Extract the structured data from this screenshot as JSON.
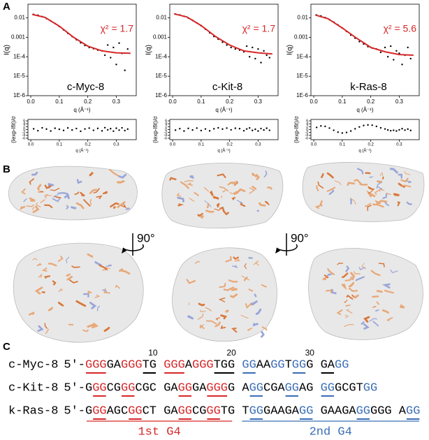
{
  "panel_labels": [
    "A",
    "B",
    "C"
  ],
  "chart_data": [
    {
      "type": "saxs",
      "log_y": true,
      "label": "c-Myc-8",
      "annotation": "χ² = 1.7",
      "x_label": "q (Å⁻¹)",
      "y_label": "I(q)",
      "xlim": [
        -0.01,
        0.37
      ],
      "ylim": [
        1e-06,
        0.05
      ],
      "xticks": [
        {
          "value": 0,
          "label": "0.0"
        },
        0.1,
        0.2,
        0.3
      ],
      "yticks": [
        0.01,
        0.001,
        {
          "value": 0.0001,
          "label": "1E-4"
        },
        {
          "value": 1e-05,
          "label": "1E-5"
        },
        {
          "value": 1e-06,
          "label": "1E-6"
        }
      ],
      "series": [
        {
          "kind": "points",
          "color": "#000000",
          "x": [
            0.01,
            0.025,
            0.04,
            0.055,
            0.07,
            0.085,
            0.1,
            0.115,
            0.13,
            0.145,
            0.16,
            0.175,
            0.19,
            0.205,
            0.22,
            0.235,
            0.25,
            0.26,
            0.27,
            0.28,
            0.29,
            0.3,
            0.31,
            0.32,
            0.33,
            0.34
          ],
          "values": [
            0.0148,
            0.0135,
            0.0115,
            0.0092,
            0.007,
            0.0051,
            0.0036,
            0.0024,
            0.0016,
            0.0011,
            0.00075,
            0.00052,
            0.00038,
            0.0003,
            0.00026,
            0.00022,
            0.0002,
            0.00012,
            0.0004,
            9e-05,
            0.0003,
            4e-05,
            0.0005,
            0.00015,
            2e-05,
            0.00025
          ]
        },
        {
          "kind": "line",
          "color": "#d62728",
          "x": [
            0.005,
            0.05,
            0.1,
            0.15,
            0.2,
            0.25,
            0.3,
            0.35
          ],
          "values": [
            0.015,
            0.0105,
            0.0037,
            0.001,
            0.00035,
            0.0002,
            0.00016,
            0.00015
          ]
        }
      ]
    },
    {
      "type": "saxs",
      "log_y": true,
      "label": "c-Kit-8",
      "annotation": "χ² = 1.7",
      "x_label": "q (Å⁻¹)",
      "y_label": "I(q)",
      "xlim": [
        -0.01,
        0.37
      ],
      "ylim": [
        1e-06,
        0.05
      ],
      "xticks": [
        {
          "value": 0,
          "label": "0.0"
        },
        0.1,
        0.2,
        0.3
      ],
      "yticks": [
        0.01,
        0.001,
        {
          "value": 0.0001,
          "label": "1E-4"
        },
        {
          "value": 1e-05,
          "label": "1E-5"
        },
        {
          "value": 1e-06,
          "label": "1E-6"
        }
      ],
      "series": [
        {
          "kind": "points",
          "color": "#000000",
          "x": [
            0.01,
            0.025,
            0.04,
            0.055,
            0.07,
            0.085,
            0.1,
            0.115,
            0.13,
            0.145,
            0.16,
            0.175,
            0.19,
            0.205,
            0.22,
            0.235,
            0.25,
            0.26,
            0.27,
            0.28,
            0.29,
            0.3,
            0.31,
            0.32,
            0.33,
            0.34
          ],
          "values": [
            0.0155,
            0.014,
            0.012,
            0.0097,
            0.0074,
            0.0054,
            0.0039,
            0.0026,
            0.0017,
            0.0011,
            0.0008,
            0.00056,
            0.0004,
            0.0003,
            0.00025,
            0.00022,
            0.00018,
            0.00035,
            0.0001,
            0.0003,
            8e-05,
            0.00025,
            5e-05,
            0.0002,
            0.00012,
            9e-05
          ]
        },
        {
          "kind": "line",
          "color": "#d62728",
          "x": [
            0.005,
            0.05,
            0.1,
            0.15,
            0.2,
            0.25,
            0.3,
            0.35
          ],
          "values": [
            0.016,
            0.011,
            0.004,
            0.0011,
            0.0004,
            0.0002,
            0.00016,
            0.00014
          ]
        }
      ]
    },
    {
      "type": "saxs",
      "log_y": true,
      "label": "k-Ras-8",
      "annotation": "χ² = 5.6",
      "x_label": "q (Å⁻¹)",
      "y_label": "I(q)",
      "xlim": [
        -0.01,
        0.37
      ],
      "ylim": [
        1e-06,
        0.05
      ],
      "xticks": [
        {
          "value": 0,
          "label": "0.0"
        },
        0.1,
        0.2,
        0.3
      ],
      "yticks": [
        0.01,
        0.001,
        {
          "value": 0.0001,
          "label": "1E-4"
        },
        {
          "value": 1e-05,
          "label": "1E-5"
        },
        {
          "value": 1e-06,
          "label": "1E-6"
        }
      ],
      "series": [
        {
          "kind": "points",
          "color": "#000000",
          "x": [
            0.01,
            0.025,
            0.04,
            0.055,
            0.07,
            0.085,
            0.1,
            0.115,
            0.13,
            0.145,
            0.16,
            0.175,
            0.19,
            0.205,
            0.22,
            0.235,
            0.25,
            0.26,
            0.27,
            0.28,
            0.29,
            0.3,
            0.31,
            0.32,
            0.33,
            0.34
          ],
          "values": [
            0.0138,
            0.0125,
            0.0102,
            0.008,
            0.006,
            0.0043,
            0.003,
            0.002,
            0.0013,
            0.0009,
            0.0006,
            0.00045,
            0.00033,
            0.00028,
            0.00025,
            0.00017,
            0.0003,
            0.0001,
            0.00035,
            7e-05,
            0.0002,
            0.00015,
            4e-05,
            0.00012,
            0.0003,
            8e-05
          ]
        },
        {
          "kind": "line",
          "color": "#d62728",
          "x": [
            0.005,
            0.05,
            0.1,
            0.15,
            0.2,
            0.25,
            0.3,
            0.35
          ],
          "values": [
            0.014,
            0.009,
            0.003,
            0.0009,
            0.0003,
            0.00018,
            0.00013,
            0.00012
          ]
        }
      ]
    },
    {
      "type": "residual",
      "x_label": "q (Å⁻¹)",
      "y_label": "(Iexp-Ifit)/σ",
      "xlim": [
        -0.01,
        0.37
      ],
      "ylim": [
        -7,
        7
      ],
      "xticks": [
        {
          "value": 0,
          "label": "0.0"
        },
        0.1,
        0.2,
        0.3
      ],
      "yticks": [
        6,
        4,
        2,
        0,
        -2,
        -4,
        -6
      ],
      "series": [
        {
          "kind": "points",
          "color": "#000000",
          "x": [
            0.01,
            0.025,
            0.04,
            0.055,
            0.07,
            0.085,
            0.1,
            0.115,
            0.13,
            0.145,
            0.16,
            0.175,
            0.19,
            0.205,
            0.22,
            0.235,
            0.25,
            0.26,
            0.27,
            0.28,
            0.29,
            0.3,
            0.31,
            0.32,
            0.33,
            0.34
          ],
          "values": [
            0.5,
            -0.8,
            1.2,
            0.3,
            -1,
            0.9,
            0.2,
            -0.6,
            1.1,
            -0.3,
            0.7,
            -1.2,
            0.4,
            1,
            -0.5,
            0.8,
            -0.9,
            1.3,
            -0.2,
            0.6,
            -1.1,
            0.9,
            -0.4,
            1.2,
            -0.7,
            0.3
          ]
        }
      ]
    },
    {
      "type": "residual",
      "x_label": "q (Å⁻¹)",
      "y_label": "(Iexp-Ifit)/σ",
      "xlim": [
        -0.01,
        0.37
      ],
      "ylim": [
        -7,
        7
      ],
      "xticks": [
        {
          "value": 0,
          "label": "0.0"
        },
        0.1,
        0.2,
        0.3
      ],
      "yticks": [
        6,
        4,
        2,
        0,
        -2,
        -4,
        -6
      ],
      "series": [
        {
          "kind": "points",
          "color": "#000000",
          "x": [
            0.01,
            0.025,
            0.04,
            0.055,
            0.07,
            0.085,
            0.1,
            0.115,
            0.13,
            0.145,
            0.16,
            0.175,
            0.19,
            0.205,
            0.22,
            0.235,
            0.25,
            0.26,
            0.27,
            0.28,
            0.29,
            0.3,
            0.31,
            0.32,
            0.33,
            0.34
          ],
          "values": [
            -0.4,
            0.6,
            -1,
            0.8,
            -0.3,
            1,
            -0.7,
            0.4,
            -0.9,
            0.5,
            1.2,
            0.3,
            1,
            -0.2,
            0.9,
            0.6,
            -0.8,
            0.4,
            1.1,
            -0.6,
            0.2,
            -1,
            0.7,
            -0.3,
            0.9,
            -0.5
          ]
        }
      ]
    },
    {
      "type": "residual",
      "x_label": "q (Å⁻¹)",
      "y_label": "(Iexp-Ifit)/σ",
      "xlim": [
        -0.01,
        0.37
      ],
      "ylim": [
        -7,
        7
      ],
      "xticks": [
        {
          "value": 0,
          "label": "0.0"
        },
        0.1,
        0.2,
        0.3
      ],
      "yticks": [
        6,
        4,
        2,
        0,
        -2,
        -4,
        -6
      ],
      "series": [
        {
          "kind": "points",
          "color": "#000000",
          "x": [
            0.01,
            0.025,
            0.04,
            0.055,
            0.07,
            0.085,
            0.1,
            0.115,
            0.13,
            0.145,
            0.16,
            0.175,
            0.19,
            0.205,
            0.22,
            0.235,
            0.25,
            0.26,
            0.27,
            0.28,
            0.29,
            0.3,
            0.31,
            0.32,
            0.33,
            0.34
          ],
          "values": [
            1.5,
            2.5,
            2.2,
            1,
            -0.5,
            -1.8,
            -2.4,
            -2,
            -1,
            0.5,
            1.8,
            2.8,
            3.2,
            3,
            2.2,
            1.2,
            0.4,
            -0.3,
            -0.8,
            -0.5,
            -1,
            -0.2,
            0.6,
            -0.4,
            0.3,
            -0.6
          ]
        }
      ]
    }
  ],
  "panel_b": {
    "rotation_labels": [
      "90°",
      "90°"
    ]
  },
  "panel_c": {
    "position_labels": [
      10,
      20,
      30
    ],
    "prefix": "5'-",
    "rows": [
      {
        "name": "c-Myc-8",
        "segments": [
          {
            "text": "GGG",
            "color": "#d62728",
            "underline": true
          },
          {
            "text": "GA",
            "color": "#000000",
            "underline": false
          },
          {
            "text": "GGG",
            "color": "#d62728",
            "underline": false
          },
          {
            "text": "TG ",
            "color": "#000000",
            "underline": true
          },
          {
            "text": "GGG",
            "color": "#d62728",
            "underline": true
          },
          {
            "text": "A",
            "color": "#000000",
            "underline": false
          },
          {
            "text": "GGG",
            "color": "#d62728",
            "underline": false
          },
          {
            "text": "TGG ",
            "color": "#000000",
            "underline": true
          },
          {
            "text": "GG",
            "color": "#3a6db5",
            "underline": true
          },
          {
            "text": "AA",
            "color": "#000000",
            "underline": false
          },
          {
            "text": "GG",
            "color": "#3a6db5",
            "underline": false
          },
          {
            "text": "T",
            "color": "#000000",
            "underline": false
          },
          {
            "text": "GG",
            "color": "#3a6db5",
            "underline": true
          },
          {
            "text": "G ",
            "color": "#000000",
            "underline": false
          },
          {
            "text": "GA",
            "color": "#000000",
            "underline": true
          },
          {
            "text": "GG",
            "color": "#3a6db5",
            "underline": false
          }
        ]
      },
      {
        "name": "c-Kit-8",
        "segments": [
          {
            "text": "G",
            "color": "#000000",
            "underline": false
          },
          {
            "text": "GG",
            "color": "#d62728",
            "underline": true
          },
          {
            "text": "CG",
            "color": "#000000",
            "underline": false
          },
          {
            "text": "GG",
            "color": "#d62728",
            "underline": true
          },
          {
            "text": "CGC ",
            "color": "#000000",
            "underline": false
          },
          {
            "text": "GA",
            "color": "#000000",
            "underline": false
          },
          {
            "text": "GG",
            "color": "#d62728",
            "underline": true
          },
          {
            "text": "GA",
            "color": "#000000",
            "underline": false
          },
          {
            "text": "GGG",
            "color": "#d62728",
            "underline": true
          },
          {
            "text": "G ",
            "color": "#000000",
            "underline": false
          },
          {
            "text": "A",
            "color": "#000000",
            "underline": false
          },
          {
            "text": "GG",
            "color": "#3a6db5",
            "underline": true
          },
          {
            "text": "CGA",
            "color": "#000000",
            "underline": false
          },
          {
            "text": "GG",
            "color": "#3a6db5",
            "underline": true
          },
          {
            "text": "AG ",
            "color": "#000000",
            "underline": false
          },
          {
            "text": "GG",
            "color": "#3a6db5",
            "underline": true
          },
          {
            "text": "GCGT",
            "color": "#000000",
            "underline": false
          },
          {
            "text": "GG",
            "color": "#3a6db5",
            "underline": false
          }
        ]
      },
      {
        "name": "k-Ras-8",
        "segments": [
          {
            "text": "G",
            "color": "#000000",
            "underline": false
          },
          {
            "text": "GG",
            "color": "#d62728",
            "underline": true
          },
          {
            "text": "AGC",
            "color": "#000000",
            "underline": false
          },
          {
            "text": "GG",
            "color": "#d62728",
            "underline": true
          },
          {
            "text": "CT ",
            "color": "#000000",
            "underline": false
          },
          {
            "text": "GA",
            "color": "#000000",
            "underline": false
          },
          {
            "text": "GG",
            "color": "#d62728",
            "underline": true
          },
          {
            "text": "CG",
            "color": "#000000",
            "underline": false
          },
          {
            "text": "GG",
            "color": "#d62728",
            "underline": true
          },
          {
            "text": "TG ",
            "color": "#000000",
            "underline": false
          },
          {
            "text": "T",
            "color": "#000000",
            "underline": false
          },
          {
            "text": "GG",
            "color": "#3a6db5",
            "underline": true
          },
          {
            "text": "GAAGA",
            "color": "#000000",
            "underline": false
          },
          {
            "text": "GG ",
            "color": "#3a6db5",
            "underline": true
          },
          {
            "text": "GAAGA",
            "color": "#000000",
            "underline": false
          },
          {
            "text": "GG",
            "color": "#3a6db5",
            "underline": true
          },
          {
            "text": "GGG ",
            "color": "#000000",
            "underline": false
          },
          {
            "text": "A",
            "color": "#000000",
            "underline": false
          },
          {
            "text": "GG",
            "color": "#3a6db5",
            "underline": true
          }
        ]
      }
    ],
    "groups": [
      {
        "label": "1st G4",
        "color": "#d62728"
      },
      {
        "label": "2nd G4",
        "color": "#3a6db5"
      }
    ]
  }
}
